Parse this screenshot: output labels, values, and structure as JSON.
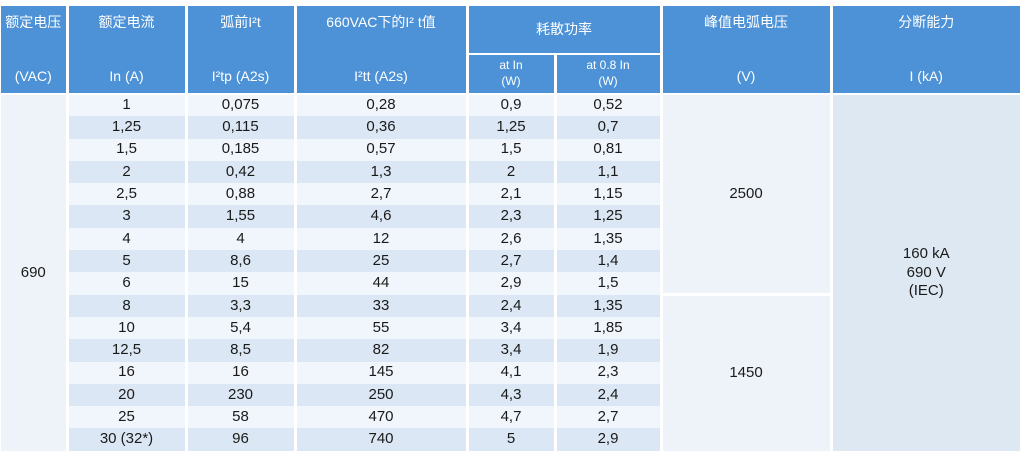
{
  "colors": {
    "header_blue": "#4d92d6",
    "row_light": "#f1f5fc",
    "row_stripe": "#dbe7f4",
    "panel_light": "#eef3fa",
    "panel_blue": "#dde8f3",
    "header_text": "#ffffff",
    "body_text": "#1a1a1a"
  },
  "table": {
    "header": {
      "voltage": {
        "title": "额定电压",
        "unit": "(VAC)"
      },
      "current": {
        "title": "额定电流",
        "unit": "In (A)"
      },
      "pre_arc": {
        "title": "弧前I²t",
        "unit": "I²tp (A2s)"
      },
      "i2t_660": {
        "title": "660VAC下的I² t值",
        "unit": "I²tt (A2s)"
      },
      "power": {
        "title": "耗散功率",
        "sub_columns": [
          {
            "line1": "at In",
            "line2": "(W)"
          },
          {
            "line1": "at 0.8 In",
            "line2": "(W)"
          }
        ]
      },
      "peak_arc": {
        "title": "峰值电弧电压",
        "unit": "(V)"
      },
      "breaking": {
        "title": "分断能力",
        "unit": "I (kA)"
      }
    },
    "rated_voltage": "690",
    "row_keys": [
      "rated-current",
      "pre-arc-i2t",
      "i2t-660vac",
      "power-at-in",
      "power-at-0-8-in"
    ],
    "rows": [
      [
        "1",
        "0,075",
        "0,28",
        "0,9",
        "0,52"
      ],
      [
        "1,25",
        "0,115",
        "0,36",
        "1,25",
        "0,7"
      ],
      [
        "1,5",
        "0,185",
        "0,57",
        "1,5",
        "0,81"
      ],
      [
        "2",
        "0,42",
        "1,3",
        "2",
        "1,1"
      ],
      [
        "2,5",
        "0,88",
        "2,7",
        "2,1",
        "1,15"
      ],
      [
        "3",
        "1,55",
        "4,6",
        "2,3",
        "1,25"
      ],
      [
        "4",
        "4",
        "12",
        "2,6",
        "1,35"
      ],
      [
        "5",
        "8,6",
        "25",
        "2,7",
        "1,4"
      ],
      [
        "6",
        "15",
        "44",
        "2,9",
        "1,5"
      ],
      [
        "8",
        "3,3",
        "33",
        "2,4",
        "1,35"
      ],
      [
        "10",
        "5,4",
        "55",
        "3,4",
        "1,85"
      ],
      [
        "12,5",
        "8,5",
        "82",
        "3,4",
        "1,9"
      ],
      [
        "16",
        "16",
        "145",
        "4,1",
        "2,3"
      ],
      [
        "20",
        "230",
        "250",
        "4,3",
        "2,4"
      ],
      [
        "25",
        "58",
        "470",
        "4,7",
        "2,7"
      ],
      [
        "30 (32*)",
        "96",
        "740",
        "5",
        "2,9"
      ]
    ],
    "peak_arc_voltage_groups": [
      {
        "value": "2500",
        "row_span": 9
      },
      {
        "value": "1450",
        "row_span": 7
      }
    ],
    "breaking_capacity": [
      "160 kA",
      "690 V",
      "(IEC)"
    ]
  }
}
